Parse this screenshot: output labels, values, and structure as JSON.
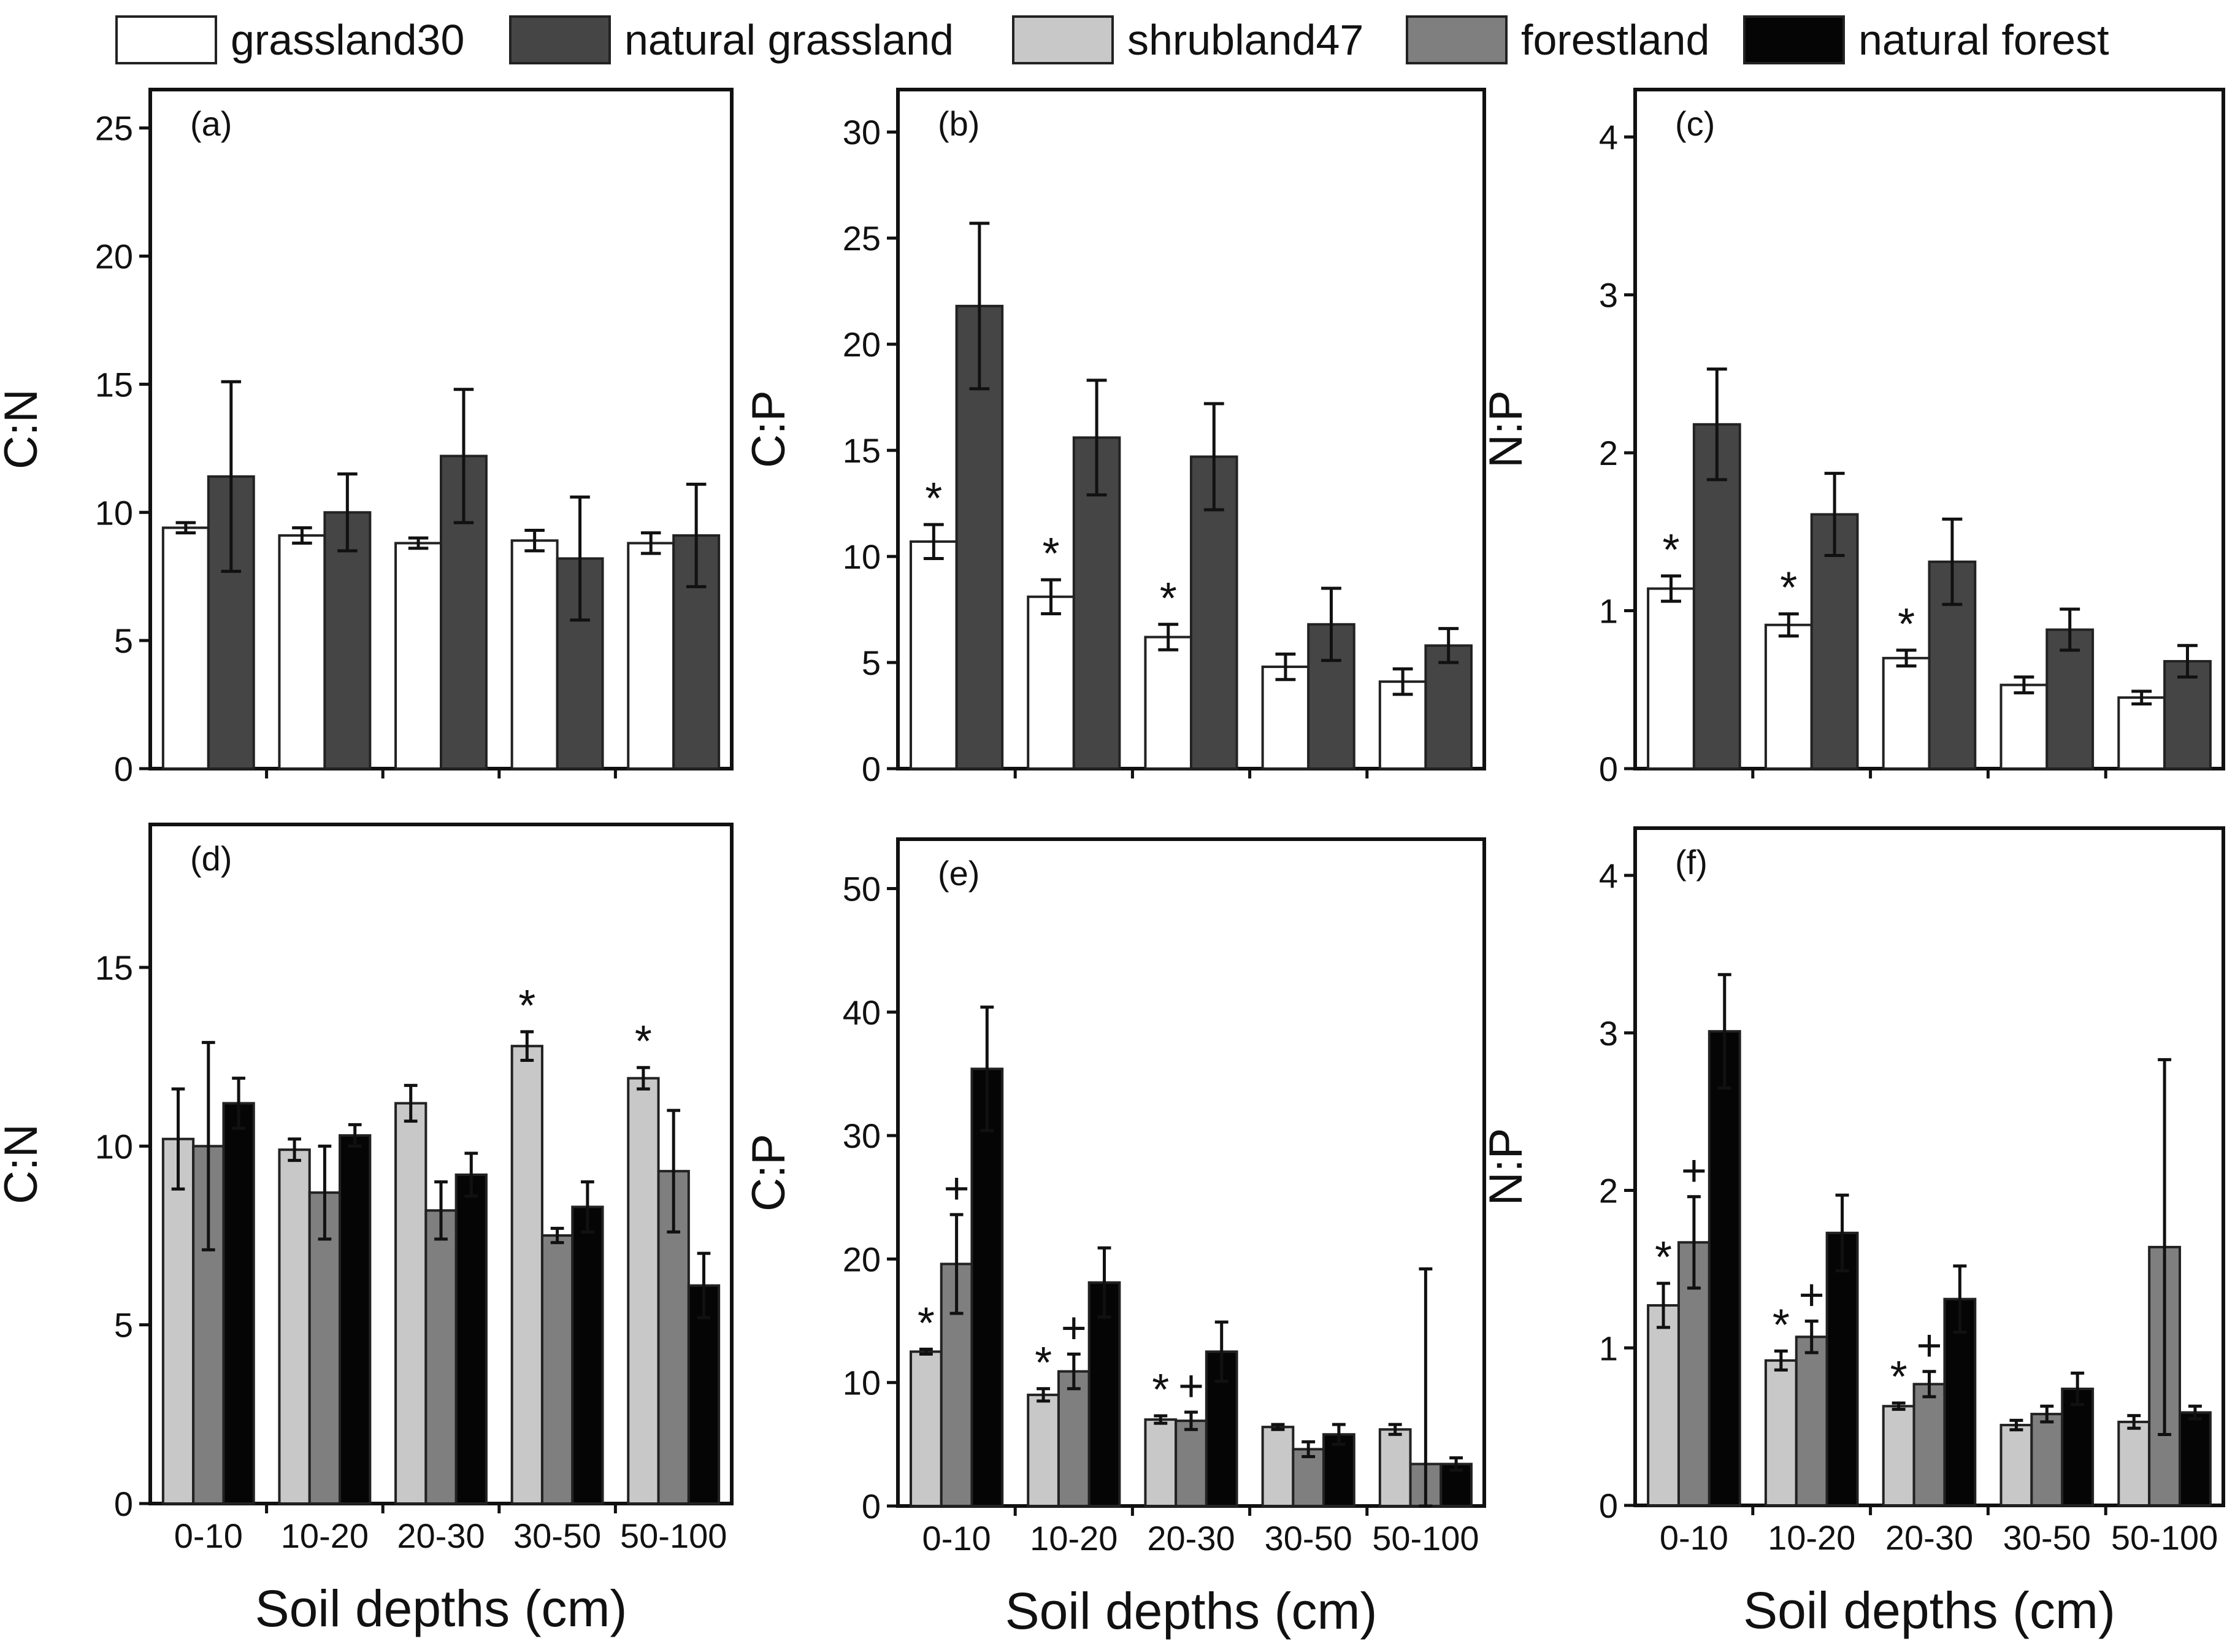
{
  "colors": {
    "grassland30": "#ffffff",
    "natural grassland": "#454545",
    "shrubland47": "#c8c8c8",
    "forestland": "#7f7f7f",
    "natural forest": "#050505"
  },
  "legend": [
    {
      "name": "grassland30",
      "color": "#ffffff"
    },
    {
      "name": "natural grassland",
      "color": "#454545"
    },
    {
      "name": "shrubland47",
      "color": "#c8c8c8"
    },
    {
      "name": "forestland",
      "color": "#7f7f7f"
    },
    {
      "name": "natural forest",
      "color": "#050505"
    }
  ],
  "chart_data": [
    {
      "type": "bar",
      "panel": "(a)",
      "ylabel": "C:N",
      "xlabel": "",
      "ylim": [
        0,
        26.5
      ],
      "yticks": [
        0,
        5,
        10,
        15,
        20,
        25
      ],
      "categories": [
        "0-10",
        "10-20",
        "20-30",
        "30-50",
        "50-100"
      ],
      "show_xticklabels": false,
      "series": [
        {
          "name": "grassland30",
          "values": [
            9.4,
            9.1,
            8.8,
            8.9,
            8.8
          ],
          "errors": [
            0.2,
            0.3,
            0.2,
            0.4,
            0.4
          ],
          "markers": [
            "",
            "",
            "",
            "",
            ""
          ]
        },
        {
          "name": "natural grassland",
          "values": [
            11.4,
            10.0,
            12.2,
            8.2,
            9.1
          ],
          "errors": [
            3.7,
            1.5,
            2.6,
            2.4,
            2.0
          ],
          "markers": [
            "",
            "",
            "",
            "",
            ""
          ]
        }
      ]
    },
    {
      "type": "bar",
      "panel": "(b)",
      "ylabel": "C:P",
      "xlabel": "",
      "ylim": [
        0,
        32
      ],
      "yticks": [
        0,
        5,
        10,
        15,
        20,
        25,
        30
      ],
      "categories": [
        "0-10",
        "10-20",
        "20-30",
        "30-50",
        "50-100"
      ],
      "show_xticklabels": false,
      "series": [
        {
          "name": "grassland30",
          "values": [
            10.7,
            8.1,
            6.2,
            4.8,
            4.1
          ],
          "errors": [
            0.8,
            0.8,
            0.6,
            0.6,
            0.6
          ],
          "markers": [
            "*",
            "*",
            "*",
            "",
            ""
          ]
        },
        {
          "name": "natural grassland",
          "values": [
            21.8,
            15.6,
            14.7,
            6.8,
            5.8
          ],
          "errors": [
            3.9,
            2.7,
            2.5,
            1.7,
            0.8
          ],
          "markers": [
            "",
            "",
            "",
            "",
            ""
          ]
        }
      ]
    },
    {
      "type": "bar",
      "panel": "(c)",
      "ylabel": "N:P",
      "xlabel": "",
      "ylim": [
        0,
        4.3
      ],
      "yticks": [
        0,
        1,
        2,
        3,
        4
      ],
      "categories": [
        "0-10",
        "10-20",
        "20-30",
        "30-50",
        "50-100"
      ],
      "show_xticklabels": false,
      "series": [
        {
          "name": "grassland30",
          "values": [
            1.14,
            0.91,
            0.7,
            0.53,
            0.45
          ],
          "errors": [
            0.08,
            0.07,
            0.05,
            0.05,
            0.04
          ],
          "markers": [
            "*",
            "*",
            "*",
            "",
            ""
          ]
        },
        {
          "name": "natural grassland",
          "values": [
            2.18,
            1.61,
            1.31,
            0.88,
            0.68
          ],
          "errors": [
            0.35,
            0.26,
            0.27,
            0.13,
            0.1
          ],
          "markers": [
            "",
            "",
            "",
            "",
            ""
          ]
        }
      ]
    },
    {
      "type": "bar",
      "panel": "(d)",
      "ylabel": "C:N",
      "xlabel": "Soil depths (cm)",
      "ylim": [
        0,
        19
      ],
      "yticks": [
        0,
        5,
        10,
        15
      ],
      "categories": [
        "0-10",
        "10-20",
        "20-30",
        "30-50",
        "50-100"
      ],
      "show_xticklabels": true,
      "series": [
        {
          "name": "shrubland47",
          "values": [
            10.2,
            9.9,
            11.2,
            12.8,
            11.9
          ],
          "errors": [
            1.4,
            0.3,
            0.5,
            0.4,
            0.3
          ],
          "markers": [
            "",
            "",
            "",
            "*",
            "*"
          ]
        },
        {
          "name": "forestland",
          "values": [
            10.0,
            8.7,
            8.2,
            7.5,
            9.3
          ],
          "errors": [
            2.9,
            1.3,
            0.8,
            0.2,
            1.7
          ],
          "markers": [
            "",
            "",
            "",
            "",
            ""
          ]
        },
        {
          "name": "natural forest",
          "values": [
            11.2,
            10.3,
            9.2,
            8.3,
            6.1
          ],
          "errors": [
            0.7,
            0.3,
            0.6,
            0.7,
            0.9
          ],
          "markers": [
            "",
            "",
            "",
            "",
            ""
          ]
        }
      ]
    },
    {
      "type": "bar",
      "panel": "(e)",
      "ylabel": "C:P",
      "xlabel": "Soil depths (cm)",
      "ylim": [
        0,
        54
      ],
      "yticks": [
        0,
        10,
        20,
        30,
        40,
        50
      ],
      "categories": [
        "0-10",
        "10-20",
        "20-30",
        "30-50",
        "50-100"
      ],
      "show_xticklabels": true,
      "series": [
        {
          "name": "shrubland47",
          "values": [
            12.5,
            9.0,
            7.0,
            6.4,
            6.2
          ],
          "errors": [
            0.2,
            0.5,
            0.3,
            0.2,
            0.4
          ],
          "markers": [
            "*",
            "*",
            "*",
            "",
            ""
          ]
        },
        {
          "name": "forestland",
          "values": [
            19.6,
            10.9,
            6.9,
            4.6,
            3.4
          ],
          "errors": [
            4.0,
            1.4,
            0.7,
            0.6,
            15.8
          ],
          "markers": [
            "+",
            "+",
            "+",
            "",
            ""
          ]
        },
        {
          "name": "natural forest",
          "values": [
            35.4,
            18.1,
            12.5,
            5.8,
            3.4
          ],
          "errors": [
            5.0,
            2.8,
            2.4,
            0.8,
            0.5
          ],
          "markers": [
            "",
            "",
            "",
            "",
            ""
          ]
        }
      ]
    },
    {
      "type": "bar",
      "panel": "(f)",
      "ylabel": "N:P",
      "xlabel": "Soil depths (cm)",
      "ylim": [
        0,
        4.3
      ],
      "yticks": [
        0,
        1,
        2,
        3,
        4
      ],
      "categories": [
        "0-10",
        "10-20",
        "20-30",
        "30-50",
        "50-100"
      ],
      "show_xticklabels": true,
      "series": [
        {
          "name": "shrubland47",
          "values": [
            1.27,
            0.92,
            0.63,
            0.51,
            0.53
          ],
          "errors": [
            0.14,
            0.06,
            0.02,
            0.03,
            0.04
          ],
          "markers": [
            "*",
            "*",
            "*",
            "",
            ""
          ]
        },
        {
          "name": "forestland",
          "values": [
            1.67,
            1.07,
            0.77,
            0.58,
            1.64
          ],
          "errors": [
            0.29,
            0.1,
            0.08,
            0.05,
            1.19
          ],
          "markers": [
            "+",
            "+",
            "+",
            "",
            ""
          ]
        },
        {
          "name": "natural forest",
          "values": [
            3.01,
            1.73,
            1.31,
            0.74,
            0.59
          ],
          "errors": [
            0.36,
            0.24,
            0.21,
            0.1,
            0.04
          ],
          "markers": [
            "",
            "",
            "",
            "",
            ""
          ]
        }
      ]
    }
  ]
}
